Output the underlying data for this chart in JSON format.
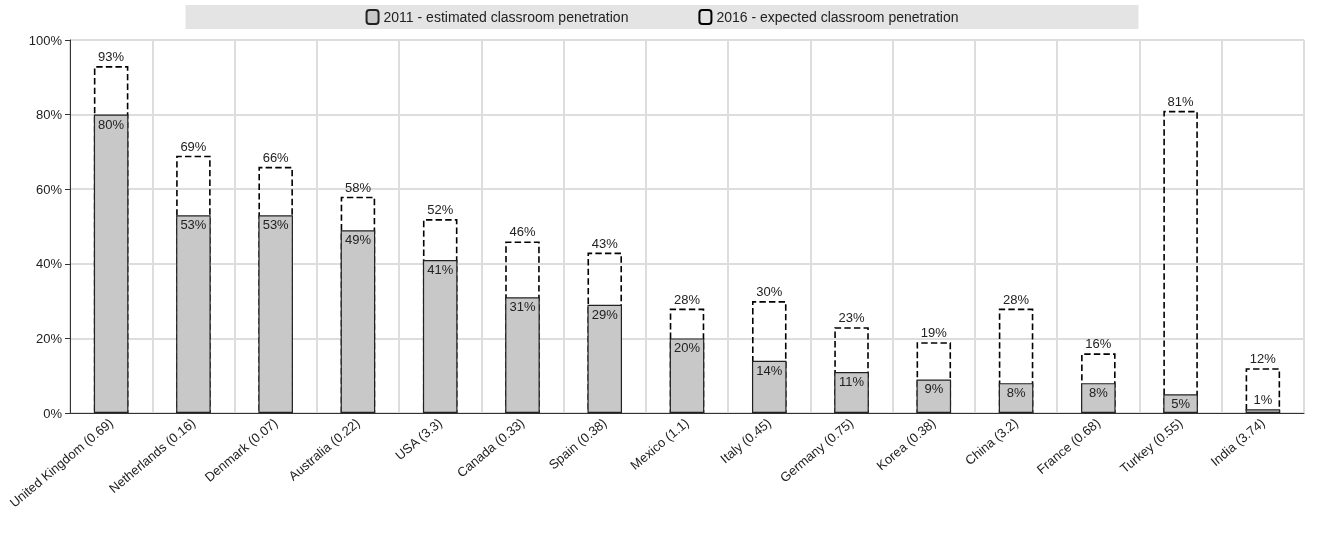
{
  "chart_data": {
    "type": "bar",
    "categories": [
      "United Kingdom (0.69)",
      "Netherlands (0.16)",
      "Denmark (0.07)",
      "Australia (0.22)",
      "USA (3.3)",
      "Canada (0.33)",
      "Spain (0.38)",
      "Mexico (1.1)",
      "Italy (0.45)",
      "Germany (0.75)",
      "Korea (0.38)",
      "China (3.2)",
      "France (0.68)",
      "Turkey (0.55)",
      "India (3.74)"
    ],
    "series": [
      {
        "name": "2011 - estimated classroom penetration",
        "color": "#c8c8c8",
        "values": [
          80,
          53,
          53,
          49,
          41,
          31,
          29,
          20,
          14,
          11,
          9,
          8,
          8,
          5,
          1
        ],
        "value_labels": [
          "80%",
          "53%",
          "53%",
          "49%",
          "41%",
          "31%",
          "29%",
          "20%",
          "14%",
          "11%",
          "9%",
          "8%",
          "8%",
          "5%",
          "1%"
        ]
      },
      {
        "name": "2016 - expected classroom penetration",
        "color": "#000000",
        "line_style": "dashed",
        "values": [
          93,
          69,
          66,
          58,
          52,
          46,
          43,
          28,
          30,
          23,
          19,
          28,
          16,
          81,
          12
        ],
        "value_labels": [
          "93%",
          "69%",
          "66%",
          "58%",
          "52%",
          "46%",
          "43%",
          "28%",
          "30%",
          "23%",
          "19%",
          "28%",
          "16%",
          "81%",
          "12%"
        ]
      }
    ],
    "ylim": [
      0,
      100
    ],
    "yticks": [
      {
        "value": 0,
        "label": "0%"
      },
      {
        "value": 20,
        "label": "20%"
      },
      {
        "value": 40,
        "label": "40%"
      },
      {
        "value": 60,
        "label": "60%"
      },
      {
        "value": 80,
        "label": "80%"
      },
      {
        "value": 100,
        "label": "100%"
      }
    ],
    "grid": true,
    "legend": "top"
  }
}
